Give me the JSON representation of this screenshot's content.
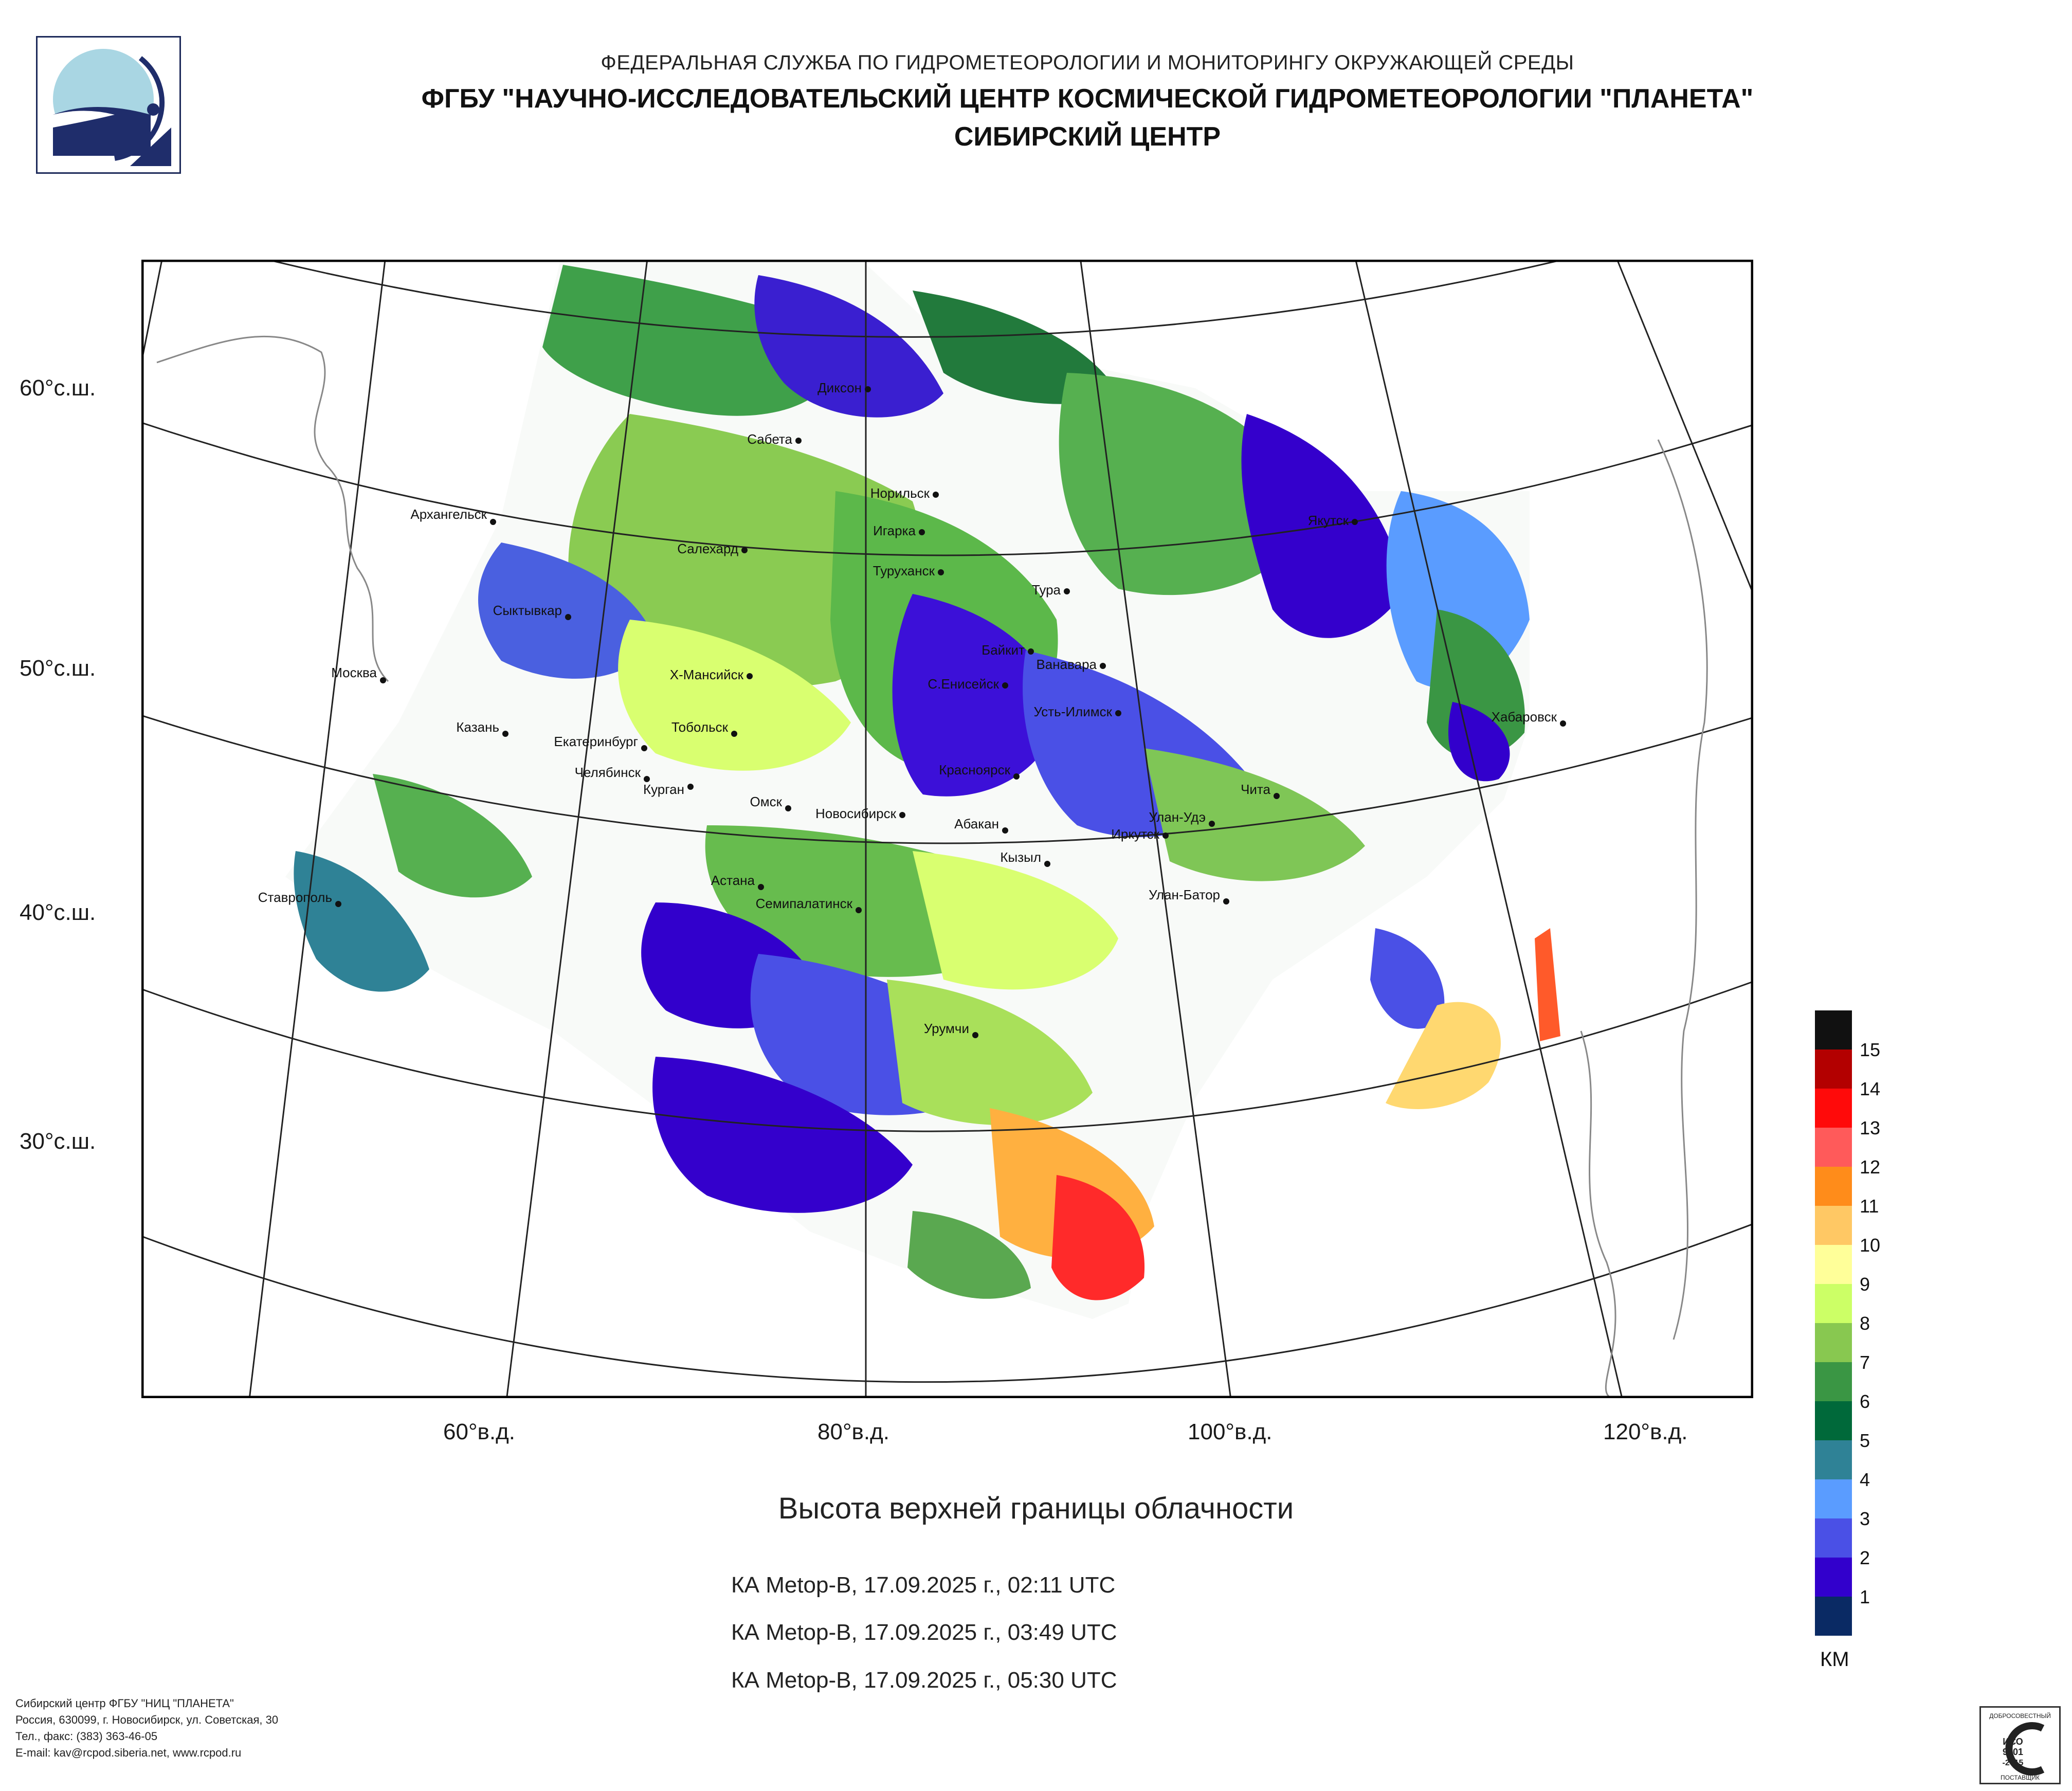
{
  "header": {
    "agency": "ФЕДЕРАЛЬНАЯ СЛУЖБА ПО ГИДРОМЕТЕОРОЛОГИИ И МОНИТОРИНГУ ОКРУЖАЮЩЕЙ СРЕДЫ",
    "institute": "ФГБУ \"НАУЧНО-ИССЛЕДОВАТЕЛЬСКИЙ ЦЕНТР КОСМИЧЕСКОЙ ГИДРОМЕТЕОРОЛОГИИ \"ПЛАНЕТА\"",
    "center": "СИБИРСКИЙ ЦЕНТР"
  },
  "map": {
    "latitude_labels": [
      "60°с.ш.",
      "50°с.ш.",
      "40°с.ш.",
      "30°с.ш."
    ],
    "longitude_labels": [
      "60°в.д.",
      "80°в.д.",
      "100°в.д.",
      "120°в.д."
    ],
    "cities": [
      "Диксон",
      "Сабета",
      "Норильск",
      "Игарка",
      "Архангельск",
      "Салехард",
      "Туруханск",
      "Тура",
      "Якутск",
      "Сыктывкар",
      "Байкит",
      "Ванавара",
      "Москва",
      "Х-Мансийск",
      "С.Енисейск",
      "Усть-Илимск",
      "Казань",
      "Тобольск",
      "Екатеринбург",
      "Хабаровск",
      "Челябинск",
      "Красноярск",
      "Курган",
      "Омск",
      "Новосибирск",
      "Абакан",
      "Чита",
      "Улан-Удэ",
      "Иркутск",
      "Кызыл",
      "Ставрополь",
      "Астана",
      "Семипалатинск",
      "Улан-Батор",
      "Урумчи"
    ]
  },
  "product": {
    "title": "Высота верхней границы облачности",
    "passes": [
      "КА Metop-B, 17.09.2025 г., 02:11 UTC",
      "КА Metop-B, 17.09.2025 г., 03:49 UTC",
      "КА Metop-B, 17.09.2025 г., 05:30 UTC"
    ]
  },
  "legend": {
    "unit": "КМ",
    "levels": [
      "15",
      "14",
      "13",
      "12",
      "11",
      "10",
      "9",
      "8",
      "7",
      "6",
      "5",
      "4",
      "3",
      "2",
      "1"
    ],
    "colors": [
      "#111111",
      "#b30000",
      "#ff0a0a",
      "#ff5a5a",
      "#ff8c1a",
      "#ffc864",
      "#ffff99",
      "#ccff66",
      "#88c850",
      "#3a9644",
      "#00693a",
      "#2f8296",
      "#5a9cff",
      "#4a50e6",
      "#3200cc",
      "#0a2a64"
    ]
  },
  "footer": {
    "line1": "Сибирский центр ФГБУ \"НИЦ \"ПЛАНЕТА\"",
    "line2": "Россия, 630099, г. Новосибирск, ул. Советская, 30",
    "line3": "Тел., факс: (383) 363-46-05",
    "line4": "E-mail: kav@rcpod.siberia.net, www.rcpod.ru"
  },
  "iso_badge": {
    "top": "ДОБРОСОВЕСТНЫЙ",
    "mid1": "ИСО",
    "mid2": "9001",
    "mid3": "-2015",
    "bottom": "ПОСТАВЩИК"
  }
}
